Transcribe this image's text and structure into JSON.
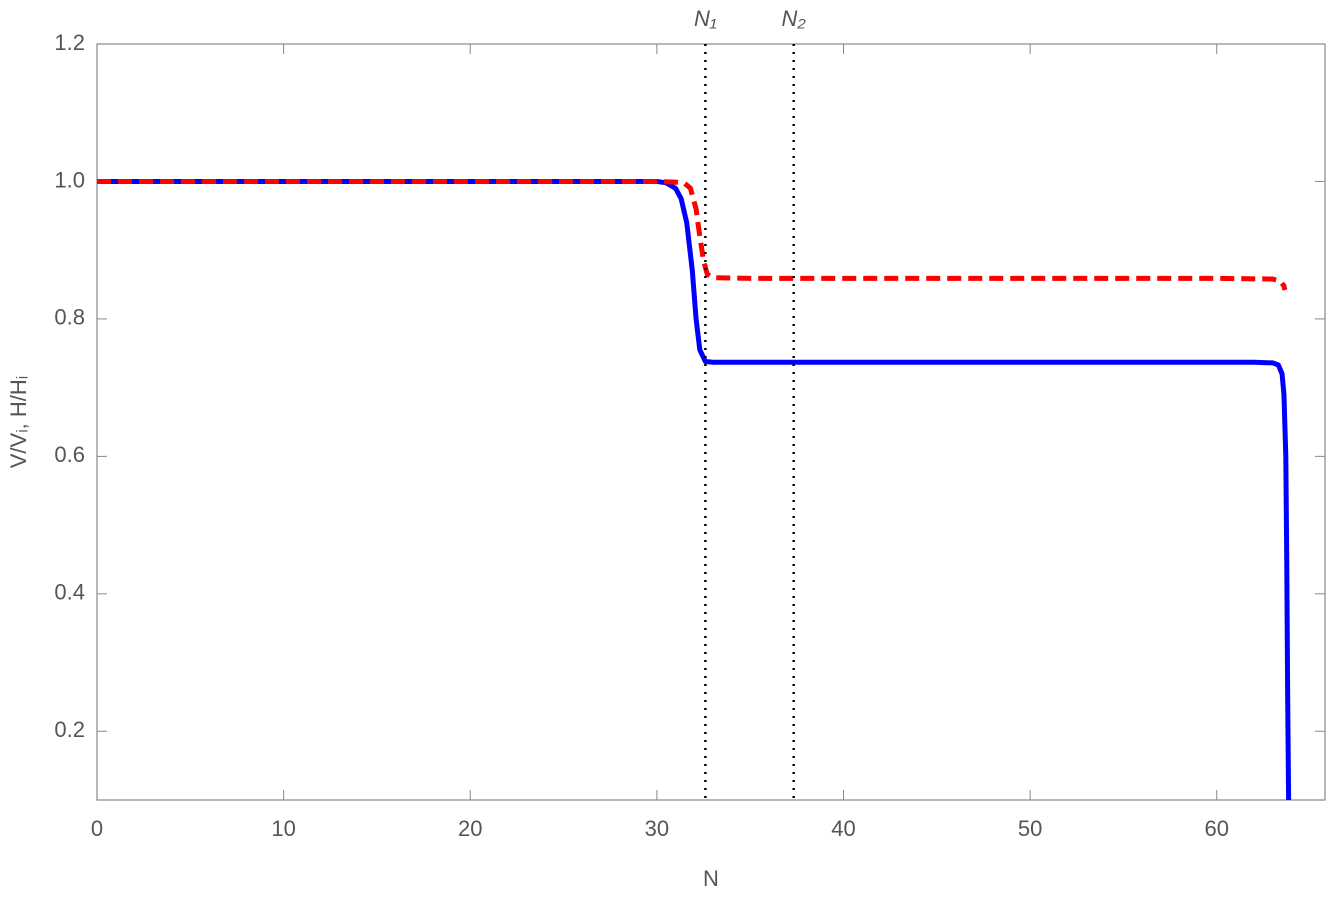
{
  "chart_data": {
    "type": "line",
    "xlabel": "N",
    "ylabel": "V/Vᵢ, H/Hᵢ",
    "xlim": [
      0,
      65.8
    ],
    "ylim": [
      0.1,
      1.2
    ],
    "xticks": [
      0,
      10,
      20,
      30,
      40,
      50,
      60
    ],
    "yticks": [
      0.2,
      0.4,
      0.6,
      0.8,
      {
        "value": 1,
        "label": "1.0"
      },
      1.2
    ],
    "annotations": [
      {
        "x": 32.6,
        "label": "N₁"
      },
      {
        "x": 37.33,
        "label": "N₂"
      }
    ],
    "series": [
      {
        "color": "#0000ff",
        "dashed": false,
        "x": [
          0,
          5,
          10,
          15,
          20,
          25,
          28,
          30,
          30.5,
          31,
          31.3,
          31.6,
          31.9,
          32.1,
          32.3,
          32.6,
          33,
          35,
          40,
          45,
          50,
          55,
          60,
          62,
          63,
          63.3,
          63.5,
          63.6,
          63.7,
          63.75,
          63.8,
          63.85
        ],
        "values": [
          1,
          1,
          1,
          1,
          1,
          1,
          1,
          1,
          0.998,
          0.99,
          0.975,
          0.94,
          0.87,
          0.8,
          0.755,
          0.738,
          0.737,
          0.737,
          0.737,
          0.737,
          0.737,
          0.737,
          0.737,
          0.737,
          0.736,
          0.733,
          0.72,
          0.69,
          0.6,
          0.45,
          0.25,
          0.1
        ]
      },
      {
        "color": "#ff0000",
        "dashed": true,
        "x": [
          0,
          5,
          10,
          15,
          20,
          25,
          30,
          31,
          31.5,
          31.8,
          32.1,
          32.3,
          32.5,
          32.7,
          33,
          35,
          40,
          45,
          50,
          55,
          60,
          63,
          63.4,
          63.6,
          63.65
        ],
        "values": [
          1,
          1,
          1,
          1,
          1,
          1,
          1,
          0.999,
          0.997,
          0.99,
          0.96,
          0.92,
          0.885,
          0.865,
          0.86,
          0.859,
          0.859,
          0.859,
          0.859,
          0.859,
          0.859,
          0.858,
          0.855,
          0.848,
          0.842
        ]
      }
    ]
  }
}
